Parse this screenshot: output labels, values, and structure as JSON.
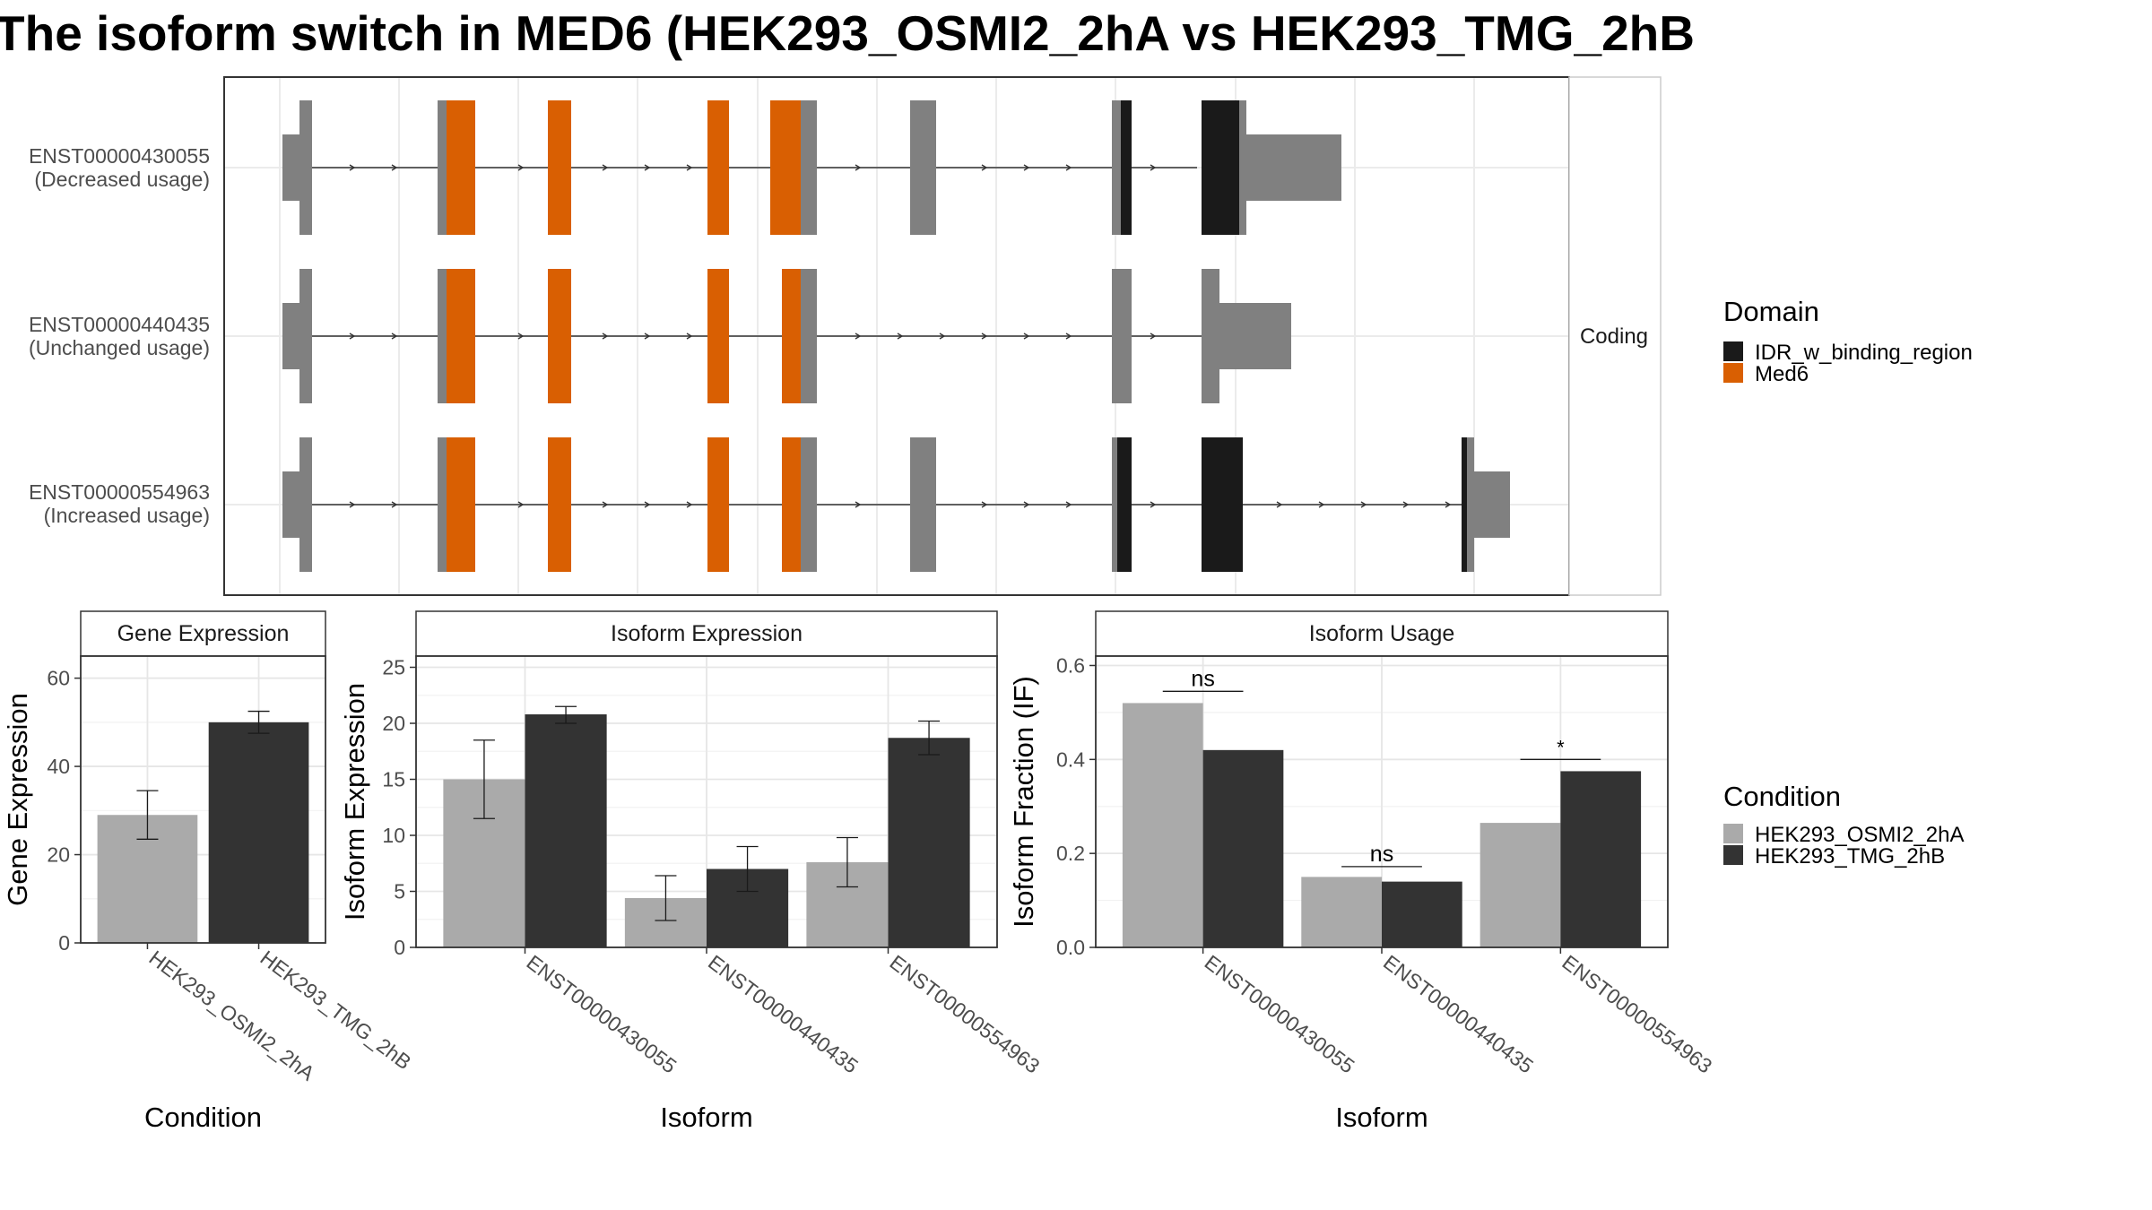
{
  "title": "The isoform switch in MED6 (HEK293_OSMI2_2hA vs HEK293_TMG_2hB",
  "colors": {
    "exon": "#808080",
    "med6": "#D95F02",
    "idr": "#1A1A1A",
    "cond_a": "#AAAAAA",
    "cond_b": "#333333"
  },
  "structure": {
    "facet_label": "Coding",
    "transcripts": [
      {
        "id": "ENST00000430055",
        "usage": "(Decreased usage)"
      },
      {
        "id": "ENST00000440435",
        "usage": "(Unchanged usage)"
      },
      {
        "id": "ENST00000554963",
        "usage": "(Increased usage)"
      }
    ]
  },
  "legends": {
    "domain": {
      "title": "Domain",
      "items": [
        {
          "label": "IDR_w_binding_region",
          "color": "#1A1A1A"
        },
        {
          "label": "Med6",
          "color": "#D95F02"
        }
      ]
    },
    "condition": {
      "title": "Condition",
      "items": [
        {
          "label": "HEK293_OSMI2_2hA",
          "color": "#AAAAAA"
        },
        {
          "label": "HEK293_TMG_2hB",
          "color": "#333333"
        }
      ]
    }
  },
  "chart_data": [
    {
      "type": "bar",
      "title": "Gene Expression",
      "xlabel": "Condition",
      "ylabel": "Gene Expression",
      "ylim": [
        0,
        65
      ],
      "yticks": [
        0,
        20,
        40,
        60
      ],
      "categories": [
        "HEK293_OSMI2_2hA",
        "HEK293_TMG_2hB"
      ],
      "values": [
        29,
        50
      ],
      "errors": [
        [
          23.5,
          34.5
        ],
        [
          47.5,
          52.5
        ]
      ]
    },
    {
      "type": "bar",
      "title": "Isoform Expression",
      "xlabel": "Isoform",
      "ylabel": "Isoform Expression",
      "ylim": [
        0,
        26
      ],
      "yticks": [
        0,
        5,
        10,
        15,
        20,
        25
      ],
      "categories": [
        "ENST00000430055",
        "ENST00000440435",
        "ENST00000554963"
      ],
      "series": [
        {
          "name": "HEK293_OSMI2_2hA",
          "values": [
            15,
            4.4,
            7.6
          ],
          "errors": [
            [
              11.5,
              18.5
            ],
            [
              2.4,
              6.4
            ],
            [
              5.4,
              9.8
            ]
          ]
        },
        {
          "name": "HEK293_TMG_2hB",
          "values": [
            20.8,
            7,
            18.7
          ],
          "errors": [
            [
              20,
              21.5
            ],
            [
              5,
              9
            ],
            [
              17.2,
              20.2
            ]
          ]
        }
      ]
    },
    {
      "type": "bar",
      "title": "Isoform Usage",
      "xlabel": "Isoform",
      "ylabel": "Isoform Fraction (IF)",
      "ylim": [
        0,
        0.62
      ],
      "yticks": [
        "0.0",
        "0.2",
        "0.4",
        "0.6"
      ],
      "categories": [
        "ENST00000430055",
        "ENST00000440435",
        "ENST00000554963"
      ],
      "series": [
        {
          "name": "HEK293_OSMI2_2hA",
          "values": [
            0.52,
            0.15,
            0.265
          ]
        },
        {
          "name": "HEK293_TMG_2hB",
          "values": [
            0.42,
            0.14,
            0.375
          ]
        }
      ],
      "significance": [
        {
          "label": "ns",
          "y": 0.545
        },
        {
          "label": "ns",
          "y": 0.172
        },
        {
          "label": "*",
          "y": 0.4
        }
      ]
    }
  ]
}
